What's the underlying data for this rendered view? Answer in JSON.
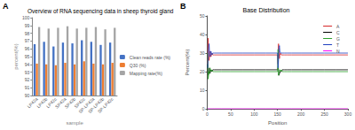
{
  "chart_data": [
    {
      "type": "bar",
      "annotations": [
        "A"
      ],
      "title": "Overview of RNA sequencing data in sheep thyroid gland",
      "x_label": "sample",
      "y_label": "percent(%)",
      "categories": [
        "LP42a",
        "LP42b",
        "LP42c",
        "SP42a",
        "SP42b",
        "SP42c",
        "SP-LP42a",
        "SP-LP42b",
        "SP-LP42c"
      ],
      "series": [
        {
          "name": "Clean reads rate (%)",
          "color": "#4472c4",
          "values": [
            96.6,
            96.9,
            96.3,
            96.8,
            96.7,
            97.1,
            96.9,
            96.5,
            96.8
          ]
        },
        {
          "name": "Q30 (%)",
          "color": "#ed7d31",
          "values": [
            94.1,
            94.0,
            93.9,
            94.2,
            94.0,
            94.4,
            94.1,
            94.0,
            94.2
          ]
        },
        {
          "name": "Mapping rate(%)",
          "color": "#a5a5a5",
          "values": [
            98.8,
            98.6,
            98.7,
            98.9,
            98.6,
            98.7,
            98.8,
            98.5,
            98.7
          ]
        }
      ],
      "ylim": [
        90,
        100
      ],
      "yticks": [
        90,
        91,
        92,
        93,
        94,
        95,
        96,
        97,
        98,
        99,
        100
      ],
      "grid": false,
      "legend": "right"
    },
    {
      "type": "line",
      "annotations": [
        "B"
      ],
      "title": "Base Distribution",
      "x_label": "Position",
      "y_label": "Percent(%)",
      "x": [
        1,
        2,
        3,
        4,
        5,
        6,
        8,
        10,
        12,
        15,
        20,
        30,
        50,
        75,
        100,
        125,
        150,
        151,
        152,
        153,
        154,
        155,
        156,
        158,
        160,
        162,
        165,
        170,
        180,
        200,
        225,
        250,
        275,
        300
      ],
      "series": [
        {
          "name": "A",
          "color": "#d62728",
          "values": [
            24,
            38,
            30,
            26,
            29,
            31,
            28,
            30,
            29,
            29,
            29,
            29,
            29,
            29,
            29,
            29,
            29,
            24,
            35,
            30,
            27,
            29,
            30,
            29,
            29,
            29,
            29,
            29,
            29,
            29,
            29,
            29,
            29,
            29
          ]
        },
        {
          "name": "C",
          "color": "#000000",
          "values": [
            24,
            18,
            20,
            19,
            22,
            19,
            21,
            20,
            21,
            21,
            21,
            21,
            21,
            21,
            21,
            21,
            21,
            22,
            21,
            18,
            19,
            19,
            20,
            20,
            21,
            21,
            21,
            21,
            21,
            21,
            21,
            21,
            21,
            21
          ]
        },
        {
          "name": "G",
          "color": "#2ca02c",
          "values": [
            30,
            16,
            18,
            20,
            19,
            22,
            20,
            21,
            20,
            20,
            20,
            20,
            20,
            20,
            20,
            20,
            20,
            32,
            18,
            19,
            20,
            21,
            20,
            21,
            20,
            20,
            20,
            20,
            20,
            20,
            20,
            20,
            20,
            20
          ]
        },
        {
          "name": "T",
          "color": "#1f3fbf",
          "values": [
            22,
            28,
            32,
            35,
            30,
            28,
            31,
            29,
            30,
            30,
            30,
            30,
            30,
            30,
            30,
            30,
            30,
            22,
            26,
            33,
            34,
            31,
            30,
            30,
            30,
            30,
            30,
            30,
            30,
            30,
            30,
            30,
            30,
            30
          ]
        },
        {
          "name": "N",
          "color": "#ff00ff",
          "values": [
            0,
            0,
            0,
            0,
            0,
            0,
            0,
            0,
            0,
            0,
            0,
            0,
            0,
            0,
            0,
            0,
            0,
            0,
            0,
            0,
            0,
            0,
            0,
            0,
            0,
            0,
            0,
            0,
            0,
            0,
            0,
            0,
            0,
            0
          ]
        }
      ],
      "xlim": [
        0,
        300
      ],
      "xticks": [
        0,
        50,
        100,
        150,
        200,
        250,
        300
      ],
      "ylim": [
        0,
        50
      ],
      "yticks": [
        0,
        10,
        20,
        30,
        40,
        50
      ],
      "grid": false,
      "legend": "upper right"
    }
  ]
}
